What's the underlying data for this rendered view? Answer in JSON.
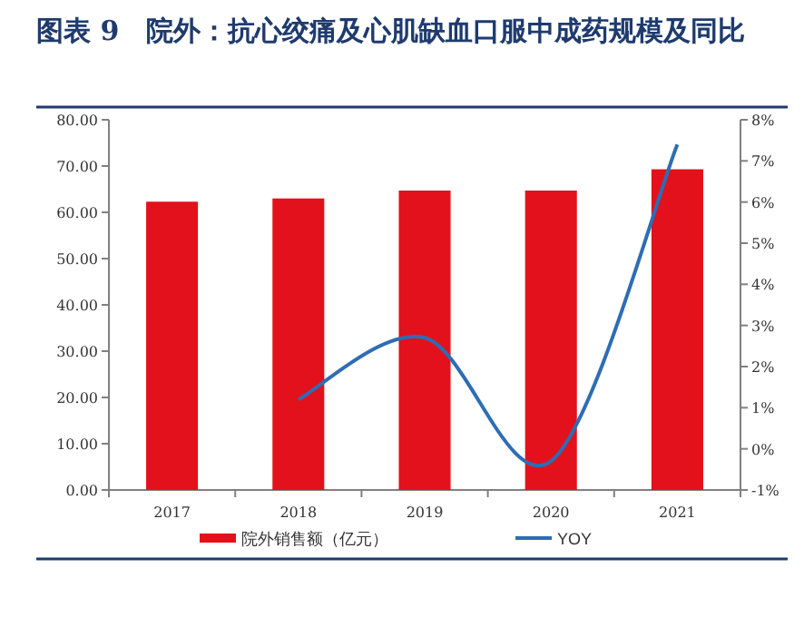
{
  "chart_data": {
    "type": "bar",
    "title": "图表 9　院外：抗心绞痛及心肌缺血口服中成药规模及同比",
    "categories": [
      "2017",
      "2018",
      "2019",
      "2020",
      "2021"
    ],
    "series": [
      {
        "name": "院外销售额（亿元）",
        "color": "#e3111b",
        "values": [
          62.3,
          63.0,
          64.7,
          64.7,
          69.3
        ]
      },
      {
        "name": "YOY",
        "type": "line",
        "axis": "y2",
        "color": "#2e6db4",
        "values": [
          null,
          1.2,
          2.7,
          -0.3,
          7.4
        ]
      }
    ],
    "ylim": [
      0,
      80
    ],
    "yticks": [
      {
        "value": 0,
        "label": "0.00"
      },
      {
        "value": 10,
        "label": "10.00"
      },
      {
        "value": 20,
        "label": "20.00"
      },
      {
        "value": 30,
        "label": "30.00"
      },
      {
        "value": 40,
        "label": "40.00"
      },
      {
        "value": 50,
        "label": "50.00"
      },
      {
        "value": 60,
        "label": "60.00"
      },
      {
        "value": 70,
        "label": "70.00"
      },
      {
        "value": 80,
        "label": "80.00"
      }
    ],
    "y2lim": [
      -1,
      8
    ],
    "y2ticks": [
      {
        "value": -1,
        "label": "-1%"
      },
      {
        "value": 0,
        "label": "0%"
      },
      {
        "value": 1,
        "label": "1%"
      },
      {
        "value": 2,
        "label": "2%"
      },
      {
        "value": 3,
        "label": "3%"
      },
      {
        "value": 4,
        "label": "4%"
      },
      {
        "value": 5,
        "label": "5%"
      },
      {
        "value": 6,
        "label": "6%"
      },
      {
        "value": 7,
        "label": "7%"
      },
      {
        "value": 8,
        "label": "8%"
      }
    ],
    "legend": "bottom",
    "grid": false
  }
}
